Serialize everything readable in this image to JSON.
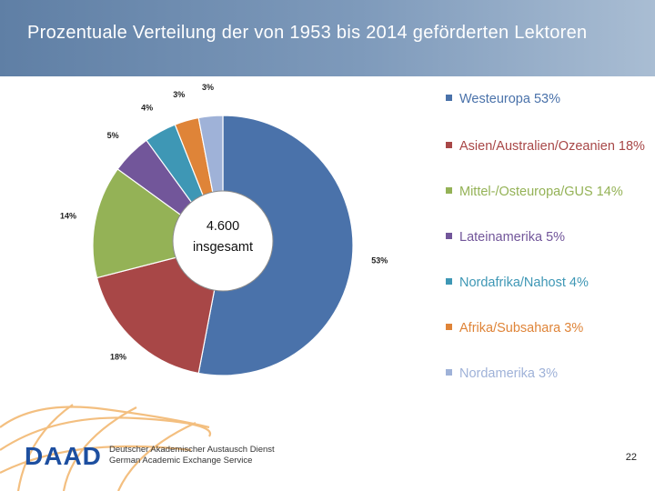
{
  "header": {
    "title": "Prozentuale Verteilung der von 1953 bis 2014 geförderten Lektoren"
  },
  "chart_data": {
    "type": "pie",
    "variant": "donut",
    "categories": [
      "Westeuropa",
      "Asien/Australien/Ozeanien",
      "Mittel-/Osteuropa/GUS",
      "Lateinamerika",
      "Nordafrika/Nahost",
      "Afrika/Subsahara",
      "Nordamerika"
    ],
    "values": [
      53,
      18,
      14,
      5,
      4,
      3,
      3
    ],
    "slice_labels": [
      "53%",
      "18%",
      "14%",
      "5%",
      "4%",
      "3%",
      "3%"
    ],
    "legend_labels": [
      "Westeuropa 53%",
      "Asien/Australien/Ozeanien 18%",
      "Mittel-/Osteuropa/GUS 14%",
      "Lateinamerika 5%",
      "Nordafrika/Nahost 4%",
      "Afrika/Subsahara 3%",
      "Nordamerika 3%"
    ],
    "colors": [
      "#4a72aa",
      "#a84747",
      "#94b256",
      "#72569a",
      "#3e97b5",
      "#df8438",
      "#9fb2d8"
    ],
    "center_label": [
      "4.600",
      "insgesamt"
    ],
    "legend_position": "right",
    "unit": "%"
  },
  "footer": {
    "logo_text": "DAAD",
    "org_line_de": "Deutscher Akademischer Austausch Dienst",
    "org_line_en": "German Academic Exchange Service",
    "page_number": "22"
  }
}
